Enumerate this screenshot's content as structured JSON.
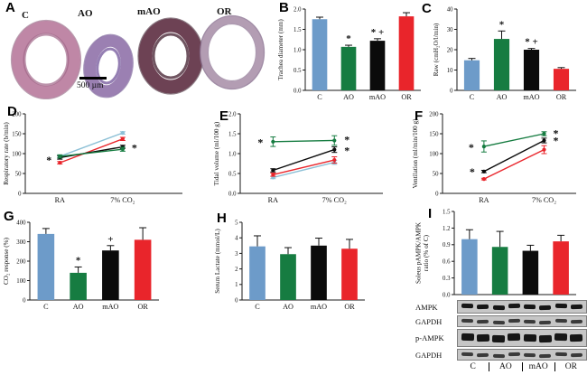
{
  "panel_letters": {
    "A": "A",
    "B": "B",
    "C": "C",
    "D": "D",
    "E": "E",
    "F": "F",
    "G": "G",
    "H": "H",
    "I": "I"
  },
  "colors": {
    "blue": "#6d9bc9",
    "green": "#167c41",
    "black": "#0b0b0b",
    "red": "#e9252b",
    "light_blue": "#8cc0d6"
  },
  "panelA": {
    "groups": [
      "C",
      "AO",
      "mAO",
      "OR"
    ],
    "scalebar": "500 µm"
  },
  "blots": {
    "rows": [
      "AMPK",
      "GAPDH",
      "p-AMPK",
      "GAPDH"
    ],
    "lanes": [
      "C",
      "AO",
      "mAO",
      "OR"
    ]
  },
  "chart_data": [
    {
      "panel": "B",
      "type": "bar",
      "ylabel": "Trachea diameter (mm)",
      "ylim": [
        0,
        2
      ],
      "yticks": [
        [
          0,
          "0.0"
        ],
        [
          0.5,
          "0.5"
        ],
        [
          1,
          "1.0"
        ],
        [
          1.5,
          "1.5"
        ],
        [
          2,
          "2.0"
        ]
      ],
      "categories": [
        "C",
        "AO",
        "mAO",
        "OR"
      ],
      "values": [
        1.75,
        1.07,
        1.22,
        1.82
      ],
      "errors": [
        0.05,
        0.04,
        0.05,
        0.09
      ],
      "sig": [
        "",
        "*",
        "* +",
        ""
      ],
      "colors": [
        "#6d9bc9",
        "#167c41",
        "#0b0b0b",
        "#e9252b"
      ]
    },
    {
      "panel": "C",
      "type": "bar",
      "ylabel": "Raw (cmH₂O/l/min)",
      "ylim": [
        0,
        40
      ],
      "yticks": [
        [
          0,
          "0"
        ],
        [
          10,
          "10"
        ],
        [
          20,
          "20"
        ],
        [
          30,
          "30"
        ],
        [
          40,
          "40"
        ]
      ],
      "categories": [
        "C",
        "AO",
        "mAO",
        "OR"
      ],
      "values": [
        14.8,
        25.3,
        20,
        10.6
      ],
      "errors": [
        0.9,
        3.9,
        0.6,
        0.6
      ],
      "sig": [
        "",
        "*",
        "* +",
        ""
      ],
      "colors": [
        "#6d9bc9",
        "#167c41",
        "#0b0b0b",
        "#e9252b"
      ]
    },
    {
      "panel": "D",
      "type": "line",
      "ylabel": "Respiratory rate (b/min)",
      "ylim": [
        0,
        200
      ],
      "yticks": [
        [
          0,
          "0"
        ],
        [
          50,
          "50"
        ],
        [
          100,
          "100"
        ],
        [
          150,
          "150"
        ],
        [
          200,
          "200"
        ]
      ],
      "x_categories": [
        "RA",
        "7% CO₂"
      ],
      "series": [
        {
          "name": "C",
          "color": "#8cc0d6",
          "values": [
            93,
            152
          ],
          "errors": [
            3,
            3
          ]
        },
        {
          "name": "OR",
          "color": "#e9252b",
          "values": [
            77,
            137
          ],
          "errors": [
            3,
            4
          ]
        },
        {
          "name": "mAO",
          "color": "#0b0b0b",
          "values": [
            90,
            117
          ],
          "errors": [
            4,
            4
          ]
        },
        {
          "name": "AO",
          "color": "#167c41",
          "values": [
            93,
            111
          ],
          "errors": [
            4,
            5
          ]
        }
      ],
      "annotations": [
        {
          "xi": 0,
          "y": 84,
          "dx": -12,
          "text": "*"
        },
        {
          "xi": 1,
          "y": 114,
          "dx": 13,
          "text": "*"
        }
      ]
    },
    {
      "panel": "E",
      "type": "line",
      "ylabel": "Tidal volume (ml/100 g)",
      "ylim": [
        0,
        2
      ],
      "yticks": [
        [
          0,
          "0.0"
        ],
        [
          0.5,
          "0.5"
        ],
        [
          1,
          "1.0"
        ],
        [
          1.5,
          "1.5"
        ],
        [
          2,
          "2.0"
        ]
      ],
      "x_categories": [
        "RA",
        "7% CO₂"
      ],
      "series": [
        {
          "name": "C",
          "color": "#8cc0d6",
          "values": [
            0.4,
            0.78
          ],
          "errors": [
            0.03,
            0.05
          ]
        },
        {
          "name": "OR",
          "color": "#e9252b",
          "values": [
            0.47,
            0.84
          ],
          "errors": [
            0.04,
            0.08
          ]
        },
        {
          "name": "mAO",
          "color": "#0b0b0b",
          "values": [
            0.58,
            1.1
          ],
          "errors": [
            0.04,
            0.07
          ]
        },
        {
          "name": "AO",
          "color": "#167c41",
          "values": [
            1.3,
            1.33
          ],
          "errors": [
            0.12,
            0.12
          ]
        }
      ],
      "annotations": [
        {
          "xi": 0,
          "y": 1.28,
          "dx": -14,
          "text": "*"
        },
        {
          "xi": 1,
          "y": 1.35,
          "dx": 14,
          "text": "*"
        },
        {
          "xi": 1,
          "y": 1.08,
          "dx": 14,
          "text": "*"
        }
      ]
    },
    {
      "panel": "F",
      "type": "line",
      "ylabel": "Ventilation (ml/min/100 g)",
      "ylim": [
        0,
        200
      ],
      "yticks": [
        [
          0,
          "0"
        ],
        [
          50,
          "50"
        ],
        [
          100,
          "100"
        ],
        [
          150,
          "150"
        ],
        [
          200,
          "200"
        ]
      ],
      "x_categories": [
        "RA",
        "7% CO₂"
      ],
      "series": [
        {
          "name": "OR",
          "color": "#e9252b",
          "values": [
            36,
            110
          ],
          "errors": [
            2,
            10
          ]
        },
        {
          "name": "mAO",
          "color": "#0b0b0b",
          "values": [
            55,
            133
          ],
          "errors": [
            3,
            6
          ]
        },
        {
          "name": "AO",
          "color": "#167c41",
          "values": [
            118,
            150
          ],
          "errors": [
            14,
            5
          ]
        }
      ],
      "annotations": [
        {
          "xi": 0,
          "y": 116,
          "dx": -14,
          "text": "*"
        },
        {
          "xi": 0,
          "y": 54,
          "dx": -13,
          "text": "*"
        },
        {
          "xi": 1,
          "y": 151,
          "dx": 13,
          "text": "*"
        },
        {
          "xi": 1,
          "y": 132,
          "dx": 13,
          "text": "*"
        }
      ]
    },
    {
      "panel": "G",
      "type": "bar",
      "ylabel": "CO₂ response (%)",
      "ylim": [
        0,
        400
      ],
      "yticks": [
        [
          0,
          "0"
        ],
        [
          100,
          "100"
        ],
        [
          200,
          "200"
        ],
        [
          300,
          "300"
        ],
        [
          400,
          "400"
        ]
      ],
      "categories": [
        "C",
        "AO",
        "mAO",
        "OR"
      ],
      "values": [
        340,
        140,
        255,
        310
      ],
      "errors": [
        28,
        30,
        25,
        62
      ],
      "sig": [
        "",
        "*",
        "+",
        ""
      ],
      "colors": [
        "#6d9bc9",
        "#167c41",
        "#0b0b0b",
        "#e9252b"
      ]
    },
    {
      "panel": "H",
      "type": "bar",
      "ylabel": "Serum Lactate (mmol/L)",
      "ylim": [
        0,
        5
      ],
      "yticks": [
        [
          0,
          "0"
        ],
        [
          1,
          "1"
        ],
        [
          2,
          "2"
        ],
        [
          3,
          "3"
        ],
        [
          4,
          "4"
        ],
        [
          5,
          "5"
        ]
      ],
      "categories": [
        "C",
        "AO",
        "mAO",
        "OR"
      ],
      "values": [
        3.45,
        2.95,
        3.5,
        3.3
      ],
      "errors": [
        0.68,
        0.42,
        0.48,
        0.6
      ],
      "sig": [
        "",
        "",
        "",
        ""
      ],
      "colors": [
        "#6d9bc9",
        "#167c41",
        "#0b0b0b",
        "#e9252b"
      ]
    },
    {
      "panel": "I",
      "type": "bar",
      "ylabel": [
        "Soleus pAMPK/AMPK",
        "ratio (% of C)"
      ],
      "ylim": [
        0,
        1.5
      ],
      "yticks": [
        [
          0,
          "0.0"
        ],
        [
          0.3,
          "0.3"
        ],
        [
          0.6,
          "0.6"
        ],
        [
          0.9,
          "0.9"
        ],
        [
          1.2,
          "1.2"
        ],
        [
          1.5,
          "1.5"
        ]
      ],
      "categories": [
        "C",
        "AO",
        "mAO",
        "OR"
      ],
      "values": [
        1.0,
        0.86,
        0.79,
        0.96
      ],
      "errors": [
        0.17,
        0.28,
        0.1,
        0.11
      ],
      "sig": [
        "",
        "",
        "",
        ""
      ],
      "colors": [
        "#6d9bc9",
        "#167c41",
        "#0b0b0b",
        "#e9252b"
      ]
    }
  ]
}
